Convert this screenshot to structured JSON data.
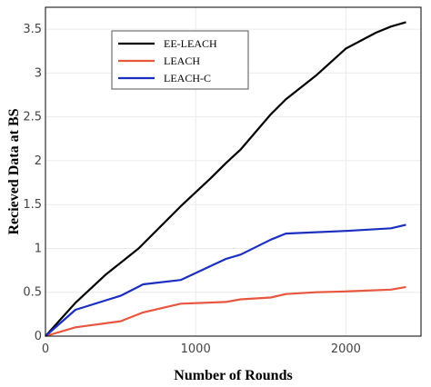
{
  "chart_data": {
    "type": "line",
    "xlabel": "Number of Rounds",
    "ylabel": "Recieved Data at BS",
    "xlim": [
      0,
      2500
    ],
    "ylim": [
      0,
      3.75
    ],
    "xticks": [
      0,
      1000,
      2000
    ],
    "xtick_labels": [
      "0",
      "1000",
      "2000"
    ],
    "yticks": [
      0,
      0.5,
      1,
      1.5,
      2,
      2.5,
      3,
      3.5
    ],
    "ytick_labels": [
      "0",
      "0.5",
      "1",
      "1.5",
      "2",
      "2.5",
      "3",
      "3.5"
    ],
    "grid": true,
    "legend_position": "top-left",
    "series": [
      {
        "name": "EE-LEACH",
        "color": "#000000",
        "x": [
          0,
          200,
          400,
          620,
          900,
          1100,
          1200,
          1300,
          1500,
          1600,
          1800,
          2000,
          2200,
          2300,
          2400
        ],
        "y": [
          0,
          0.38,
          0.7,
          1.0,
          1.48,
          1.8,
          1.97,
          2.13,
          2.53,
          2.7,
          2.97,
          3.28,
          3.46,
          3.53,
          3.58
        ]
      },
      {
        "name": "LEACH",
        "color": "#e8563d",
        "x": [
          0,
          200,
          500,
          650,
          900,
          1200,
          1300,
          1500,
          1600,
          1800,
          2000,
          2300,
          2400
        ],
        "y": [
          0,
          0.1,
          0.17,
          0.27,
          0.37,
          0.39,
          0.42,
          0.44,
          0.48,
          0.5,
          0.51,
          0.53,
          0.56
        ]
      },
      {
        "name": "LEACH-C",
        "color": "#1a2fbf",
        "x": [
          0,
          200,
          500,
          650,
          900,
          1200,
          1300,
          1500,
          1600,
          2000,
          2300,
          2400
        ],
        "y": [
          0,
          0.3,
          0.46,
          0.59,
          0.64,
          0.88,
          0.93,
          1.1,
          1.17,
          1.2,
          1.23,
          1.27
        ]
      }
    ]
  }
}
